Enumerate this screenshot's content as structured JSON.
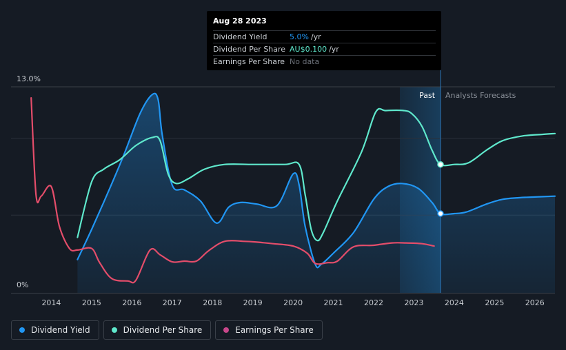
{
  "colors": {
    "background": "#151b24",
    "dividend_yield": "#2196f3",
    "dividend_per_share": "#5fe8cc",
    "earnings_per_share": "#e44d6a",
    "earnings_per_share_legend": "#c8478a",
    "grid": "#2b313a",
    "axis_text": "#c8ccd1"
  },
  "tooltip": {
    "date": "Aug 28 2023",
    "rows": [
      {
        "label": "Dividend Yield",
        "value": "5.0%",
        "unit": "/yr",
        "color": "#2196f3"
      },
      {
        "label": "Dividend Per Share",
        "value": "AU$0.100",
        "unit": "/yr",
        "color": "#5fe8cc"
      },
      {
        "label": "Earnings Per Share",
        "value": "No data",
        "unit": "",
        "color": "#6b7079"
      }
    ]
  },
  "chart_data": {
    "type": "line",
    "title": "",
    "xlabel": "",
    "ylabel": "",
    "x_ticks": [
      "2014",
      "2015",
      "2016",
      "2017",
      "2018",
      "2019",
      "2020",
      "2021",
      "2022",
      "2023",
      "2024",
      "2025",
      "2026"
    ],
    "xlim": [
      2013.0,
      2026.5
    ],
    "ylim": [
      0,
      13.0
    ],
    "y_ticks": [
      "13.0%",
      "0%"
    ],
    "y_tick_values": [
      13.0,
      0
    ],
    "past_label": "Past",
    "forecast_label": "Analysts Forecasts",
    "forecast_start": 2023.66,
    "highlight_range": [
      2022.65,
      2023.66
    ],
    "series": [
      {
        "name": "Dividend Yield",
        "unit": "%",
        "filled": true,
        "x": [
          2014.65,
          2015.0,
          2015.4,
          2015.8,
          2016.2,
          2016.5,
          2016.65,
          2016.75,
          2017.0,
          2017.3,
          2017.7,
          2018.1,
          2018.4,
          2018.7,
          2019.1,
          2019.6,
          2020.0,
          2020.15,
          2020.3,
          2020.55,
          2020.7,
          2021.0,
          2021.5,
          2022.0,
          2022.35,
          2022.7,
          2023.1,
          2023.45,
          2023.66,
          2024.0,
          2024.3,
          2024.8,
          2025.2,
          2025.6,
          2026.0,
          2026.5
        ],
        "y": [
          2.1,
          4.0,
          6.3,
          8.7,
          11.3,
          12.5,
          12.2,
          10.0,
          6.8,
          6.5,
          5.8,
          4.4,
          5.4,
          5.7,
          5.6,
          5.5,
          7.5,
          6.8,
          4.2,
          1.8,
          1.8,
          2.5,
          3.8,
          5.9,
          6.7,
          6.9,
          6.6,
          5.7,
          5.0,
          5.0,
          5.1,
          5.6,
          5.9,
          6.0,
          6.05,
          6.1
        ]
      },
      {
        "name": "Dividend Per Share",
        "unit": "AU$",
        "filled": false,
        "x": [
          2014.65,
          2015.0,
          2015.3,
          2015.7,
          2016.1,
          2016.5,
          2016.7,
          2016.9,
          2017.1,
          2017.4,
          2017.8,
          2018.3,
          2019.0,
          2019.8,
          2020.15,
          2020.3,
          2020.45,
          2020.6,
          2020.75,
          2021.1,
          2021.7,
          2022.05,
          2022.3,
          2022.75,
          2022.95,
          2023.2,
          2023.45,
          2023.66,
          2024.0,
          2024.35,
          2024.8,
          2025.2,
          2025.7,
          2026.2,
          2026.5
        ],
        "y": [
          3.5,
          7.0,
          7.8,
          8.4,
          9.3,
          9.8,
          9.6,
          7.5,
          6.9,
          7.2,
          7.8,
          8.1,
          8.1,
          8.1,
          8.1,
          6.2,
          4.0,
          3.3,
          3.8,
          5.8,
          8.9,
          11.4,
          11.5,
          11.5,
          11.3,
          10.5,
          9.0,
          8.1,
          8.1,
          8.2,
          9.0,
          9.6,
          9.9,
          10.0,
          10.05
        ]
      },
      {
        "name": "Earnings Per Share",
        "unit": "AU$",
        "filled": false,
        "x": [
          2013.5,
          2013.62,
          2013.75,
          2014.0,
          2014.2,
          2014.45,
          2014.65,
          2015.0,
          2015.2,
          2015.5,
          2015.9,
          2016.1,
          2016.45,
          2016.7,
          2017.0,
          2017.3,
          2017.6,
          2017.9,
          2018.3,
          2018.8,
          2019.1,
          2019.5,
          2020.0,
          2020.35,
          2020.55,
          2020.85,
          2021.1,
          2021.5,
          2022.0,
          2022.45,
          2022.8,
          2023.2,
          2023.5
        ],
        "y": [
          12.3,
          6.2,
          6.1,
          6.7,
          4.2,
          2.8,
          2.7,
          2.8,
          1.9,
          0.9,
          0.75,
          0.8,
          2.7,
          2.4,
          1.95,
          2.0,
          2.0,
          2.65,
          3.25,
          3.25,
          3.2,
          3.1,
          2.95,
          2.5,
          1.85,
          1.9,
          2.0,
          2.9,
          3.0,
          3.15,
          3.15,
          3.1,
          2.95
        ]
      }
    ],
    "markers": [
      {
        "series": "Dividend Yield",
        "x": 2023.66,
        "y": 5.0
      },
      {
        "series": "Dividend Per Share",
        "x": 2023.66,
        "y": 8.1
      }
    ]
  },
  "legend": [
    {
      "label": "Dividend Yield",
      "color": "#2196f3"
    },
    {
      "label": "Dividend Per Share",
      "color": "#5fe8cc"
    },
    {
      "label": "Earnings Per Share",
      "color": "#c8478a"
    }
  ]
}
